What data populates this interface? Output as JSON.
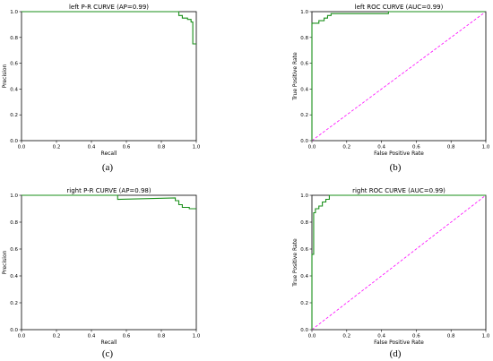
{
  "chart_data": [
    {
      "type": "line",
      "title": "left P-R CURVE (AP=0.99)",
      "xlabel": "Recall",
      "ylabel": "Precision",
      "xlim": [
        0,
        1
      ],
      "ylim": [
        0,
        1
      ],
      "xticks": [
        "0.0",
        "0.2",
        "0.4",
        "0.6",
        "0.8",
        "1.0"
      ],
      "yticks": [
        "0.0",
        "0.2",
        "0.4",
        "0.6",
        "0.8",
        "1.0"
      ],
      "caption": "(a)",
      "curve_color": "#1a8f1a",
      "diagonal": false,
      "series": [
        {
          "x": [
            0,
            0.9,
            0.9,
            0.92,
            0.92,
            0.95,
            0.95,
            0.97,
            0.97,
            0.98,
            0.98,
            1.0
          ],
          "y": [
            1.0,
            1.0,
            0.97,
            0.97,
            0.95,
            0.95,
            0.94,
            0.94,
            0.92,
            0.92,
            0.75,
            0.75
          ]
        }
      ]
    },
    {
      "type": "line",
      "title": "left ROC CURVE (AUC=0.99)",
      "xlabel": "False Positive Rate",
      "ylabel": "True Positive Rate",
      "xlim": [
        0,
        1
      ],
      "ylim": [
        0,
        1
      ],
      "xticks": [
        "0.0",
        "0.2",
        "0.4",
        "0.6",
        "0.8",
        "1.0"
      ],
      "yticks": [
        "0.0",
        "0.2",
        "0.4",
        "0.6",
        "0.8",
        "1.0"
      ],
      "caption": "(b)",
      "curve_color": "#1a8f1a",
      "diagonal": true,
      "diagonal_color": "#ff00ff",
      "series": [
        {
          "x": [
            0,
            0,
            0.04,
            0.04,
            0.07,
            0.07,
            0.09,
            0.09,
            0.11,
            0.11,
            0.44,
            0.44,
            1.0
          ],
          "y": [
            0,
            0.91,
            0.91,
            0.93,
            0.93,
            0.95,
            0.95,
            0.97,
            0.97,
            0.985,
            0.985,
            1.0,
            1.0
          ]
        }
      ]
    },
    {
      "type": "line",
      "title": "right P-R CURVE (AP=0.98)",
      "xlabel": "Recall",
      "ylabel": "Precision",
      "xlim": [
        0,
        1
      ],
      "ylim": [
        0,
        1
      ],
      "xticks": [
        "0.0",
        "0.2",
        "0.4",
        "0.6",
        "0.8",
        "1.0"
      ],
      "yticks": [
        "0.0",
        "0.2",
        "0.4",
        "0.6",
        "0.8",
        "1.0"
      ],
      "caption": "(c)",
      "curve_color": "#1a8f1a",
      "diagonal": false,
      "series": [
        {
          "x": [
            0,
            0.55,
            0.55,
            0.88,
            0.88,
            0.9,
            0.9,
            0.92,
            0.92,
            0.96,
            0.96,
            1.0
          ],
          "y": [
            1.0,
            1.0,
            0.97,
            0.98,
            0.96,
            0.96,
            0.93,
            0.93,
            0.91,
            0.91,
            0.9,
            0.9
          ]
        }
      ]
    },
    {
      "type": "line",
      "title": "right ROC CURVE (AUC=0.99)",
      "xlabel": "False Positive Rate",
      "ylabel": "True Positive Rate",
      "xlim": [
        0,
        1
      ],
      "ylim": [
        0,
        1
      ],
      "xticks": [
        "0.0",
        "0.2",
        "0.4",
        "0.6",
        "0.8",
        "1.0"
      ],
      "yticks": [
        "0.0",
        "0.2",
        "0.4",
        "0.6",
        "0.8",
        "1.0"
      ],
      "caption": "(d)",
      "curve_color": "#1a8f1a",
      "diagonal": true,
      "diagonal_color": "#ff00ff",
      "series": [
        {
          "x": [
            0,
            0,
            0.01,
            0.01,
            0.02,
            0.02,
            0.04,
            0.04,
            0.06,
            0.06,
            0.08,
            0.08,
            0.1,
            0.1,
            1.0
          ],
          "y": [
            0,
            0.56,
            0.56,
            0.87,
            0.87,
            0.9,
            0.9,
            0.92,
            0.92,
            0.95,
            0.95,
            0.97,
            0.97,
            1.0,
            1.0
          ]
        }
      ]
    }
  ]
}
